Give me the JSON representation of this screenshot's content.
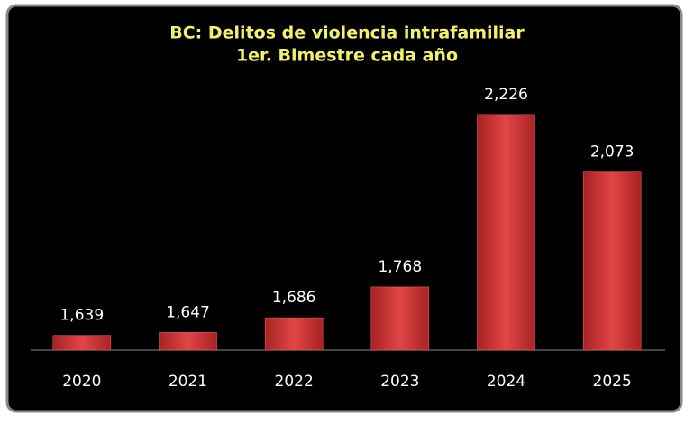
{
  "chart_data": {
    "type": "bar",
    "title": "BC: Delitos de violencia intrafamiliar",
    "subtitle": "1er. Bimestre cada año",
    "categories": [
      "2020",
      "2021",
      "2022",
      "2023",
      "2024",
      "2025"
    ],
    "values": [
      1639,
      1647,
      1686,
      1768,
      2226,
      2073
    ],
    "value_labels": [
      "1,639",
      "1,647",
      "1,686",
      "1,768",
      "2,226",
      "2,073"
    ],
    "color": "#d63a3a",
    "ylim": [
      1600,
      2300
    ]
  }
}
